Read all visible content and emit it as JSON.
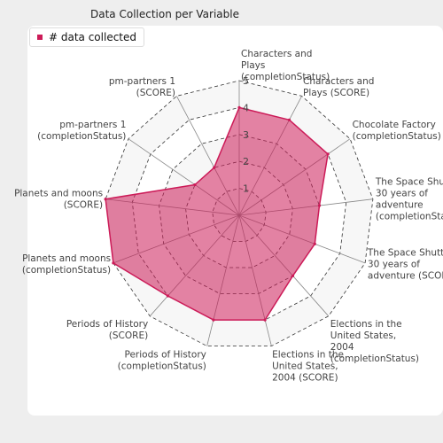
{
  "chart_data": {
    "type": "radar",
    "title": "Data Collection per Variable",
    "legend": {
      "position": "top-left",
      "label": "# data collected"
    },
    "range": [
      0,
      5
    ],
    "ticks": [
      1,
      2,
      3,
      4,
      5
    ],
    "grid": true,
    "series": [
      {
        "name": "# data collected",
        "color": "#cc1b58",
        "values": [
          4,
          4,
          4,
          3,
          3,
          3,
          4,
          4,
          4,
          5,
          5,
          2,
          2
        ]
      }
    ],
    "axes": [
      {
        "label": [
          "Characters and",
          "Plays",
          "(completionStatus)"
        ]
      },
      {
        "label": [
          "Characters and",
          "Plays (SCORE)"
        ]
      },
      {
        "label": [
          "Chocolate Factory",
          "(completionStatus)"
        ]
      },
      {
        "label": [
          "The Space Shuttle:",
          "30 years of",
          "adventure",
          "(completionStatus)"
        ]
      },
      {
        "label": [
          "The Space Shuttle:",
          "30 years of",
          "adventure (SCORE)"
        ]
      },
      {
        "label": [
          "Elections in the",
          "United States,",
          "2004",
          "(completionStatus)"
        ]
      },
      {
        "label": [
          "Elections in the",
          "United States,",
          "2004 (SCORE)"
        ]
      },
      {
        "label": [
          "Periods of History",
          "(completionStatus)"
        ]
      },
      {
        "label": [
          "Periods of History",
          "(SCORE)"
        ]
      },
      {
        "label": [
          "Planets and moons",
          "(completionStatus)"
        ]
      },
      {
        "label": [
          "Planets and moons",
          "(SCORE)"
        ]
      },
      {
        "label": [
          "pm-partners 1",
          "(completionStatus)"
        ]
      },
      {
        "label": [
          "pm-partners 1",
          "(SCORE)"
        ]
      }
    ]
  }
}
